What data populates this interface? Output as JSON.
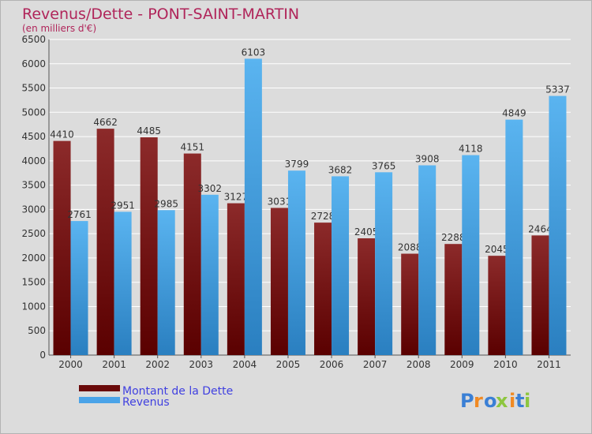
{
  "chart_data": {
    "type": "bar",
    "title": "Revenus/Dette - PONT-SAINT-MARTIN",
    "subtitle": "(en milliers d'€)",
    "categories": [
      "2000",
      "2001",
      "2002",
      "2003",
      "2004",
      "2005",
      "2006",
      "2007",
      "2008",
      "2009",
      "2010",
      "2011"
    ],
    "series": [
      {
        "name": "Montant de la Dette",
        "color": "#7a1a1a",
        "values": [
          4410,
          4662,
          4485,
          4151,
          3127,
          3031,
          2728,
          2405,
          2088,
          2288,
          2045,
          2464
        ]
      },
      {
        "name": "Revenus",
        "color": "#4aa3e8",
        "values": [
          2761,
          2951,
          2985,
          3302,
          6103,
          3799,
          3682,
          3765,
          3908,
          4118,
          4849,
          5337
        ]
      }
    ],
    "ylim": [
      0,
      6500
    ],
    "yticks": [
      0,
      500,
      1000,
      1500,
      2000,
      2500,
      3000,
      3500,
      4000,
      4500,
      5000,
      5500,
      6000,
      6500
    ],
    "grid": true,
    "legend_position": "bottom-left"
  },
  "brand": {
    "name": "Proxiti",
    "letters": [
      "P",
      "r",
      "o",
      "x",
      "i",
      "t",
      "i"
    ],
    "letter_colors": [
      "#3a7fd5",
      "#f08a24",
      "#3a7fd5",
      "#8dc63f",
      "#f08a24",
      "#3a7fd5",
      "#8dc63f"
    ]
  },
  "colors": {
    "title": "#b0255a",
    "legend_text": "#4040e0",
    "grid": "#ffffff",
    "axis_text": "#333333"
  }
}
